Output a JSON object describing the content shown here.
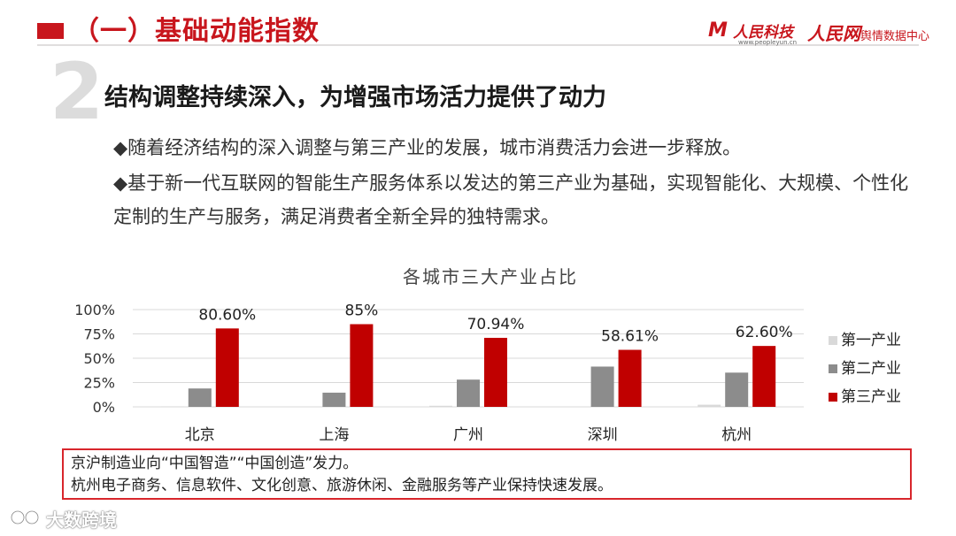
{
  "header": {
    "title": "（一）基础动能指数",
    "logo1": {
      "text": "人民科技",
      "url": "www.peopleyun.cn"
    },
    "logo2": {
      "name": "人民网",
      "sub": "舆情数据中心"
    }
  },
  "section": {
    "number": "2",
    "title": "结构调整持续深入，为增强市场活力提供了动力",
    "bullets": [
      "◆随着经济结构的深入调整与第三产业的发展，城市消费活力会进一步释放。",
      "◆基于新一代互联网的智能生产服务体系以发达的第三产业为基础，实现智能化、大规模、个性化定制的生产与服务，满足消费者全新全异的独特需求。"
    ]
  },
  "chart_data": {
    "type": "bar",
    "title": "各城市三大产业占比",
    "categories": [
      "北京",
      "上海",
      "广州",
      "深圳",
      "杭州"
    ],
    "series": [
      {
        "name": "第一产业",
        "color": "#d9d9d9",
        "values": [
          0.5,
          0.4,
          1.1,
          0.0,
          2.2
        ]
      },
      {
        "name": "第二产业",
        "color": "#8c8c8c",
        "values": [
          18.9,
          14.6,
          28.0,
          41.4,
          35.2
        ]
      },
      {
        "name": "第三产业",
        "color": "#c00000",
        "values": [
          80.6,
          85.0,
          70.94,
          58.61,
          62.6
        ]
      }
    ],
    "data_labels": [
      "80.60%",
      "85%",
      "70.94%",
      "58.61%",
      "62.60%"
    ],
    "yticks": [
      "0%",
      "25%",
      "50%",
      "75%",
      "100%"
    ],
    "ylim": [
      0,
      100
    ],
    "grid": true,
    "legend": "right"
  },
  "note": {
    "lines": [
      "京沪制造业向“中国智造”“中国创造”发力。",
      "杭州电子商务、信息软件、文化创意、旅游休闲、金融服务等产业保持快速发展。"
    ]
  },
  "watermark": {
    "text": "大数跨境"
  }
}
